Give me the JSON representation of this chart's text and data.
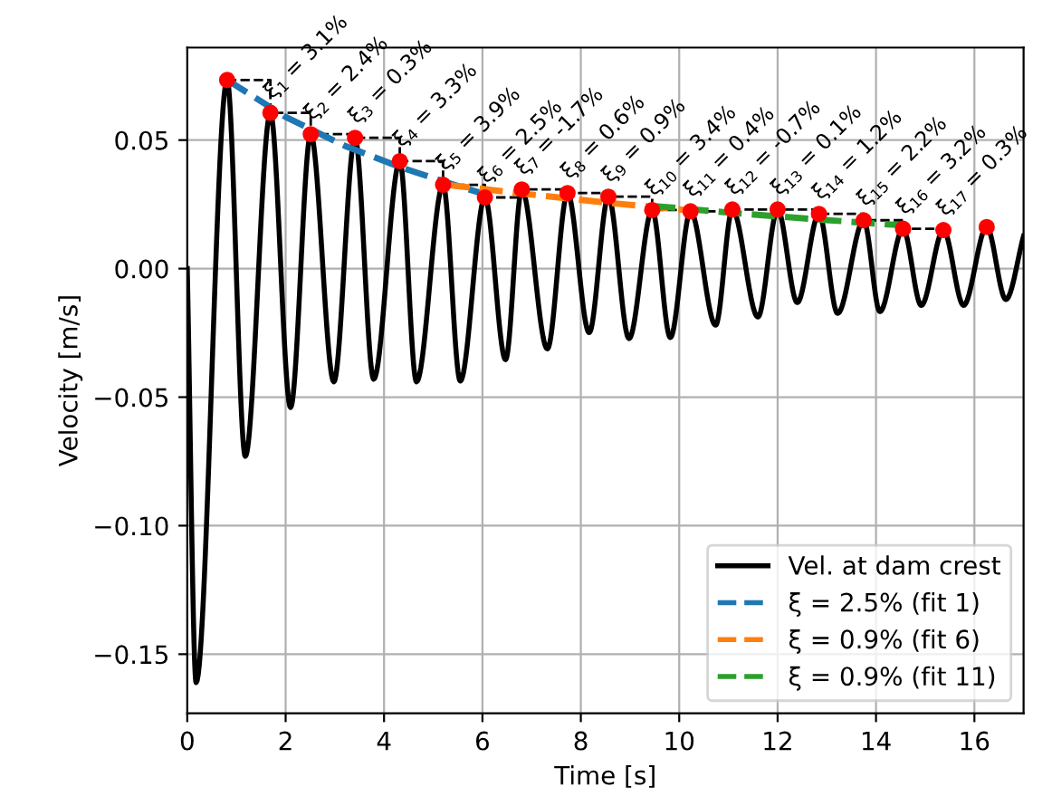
{
  "chart_data": {
    "type": "line",
    "xlabel": "Time [s]",
    "ylabel": "Velocity [m/s]",
    "xlim": [
      0,
      17
    ],
    "ylim": [
      -0.173,
      0.086
    ],
    "xticks": [
      0,
      2,
      4,
      6,
      8,
      10,
      12,
      14,
      16
    ],
    "yticks": [
      {
        "value": -0.15,
        "label": "−0.15"
      },
      {
        "value": -0.1,
        "label": "−0.10"
      },
      {
        "value": -0.05,
        "label": "−0.05"
      },
      {
        "value": 0,
        "label": "0.00"
      },
      {
        "value": 0.05,
        "label": "0.05"
      }
    ],
    "grid": true,
    "legend": "bottom right",
    "series": [
      {
        "name": "Vel. at dam crest",
        "color": "#000000",
        "line_style": "solid",
        "marker": "none",
        "x": [
          0,
          0.18,
          0.81,
          1.18,
          1.69,
          2.1,
          2.51,
          2.98,
          3.41,
          3.79,
          4.32,
          4.66,
          5.2,
          5.55,
          6.05,
          6.47,
          6.8,
          7.32,
          7.73,
          8.17,
          8.56,
          8.98,
          9.45,
          9.82,
          10.23,
          10.74,
          11.08,
          11.6,
          12.0,
          12.4,
          12.84,
          13.22,
          13.75,
          14.08,
          14.55,
          14.92,
          15.37,
          15.78,
          16.25,
          16.64,
          17.0
        ],
        "values": [
          0,
          -0.161,
          0.0734,
          -0.073,
          0.0606,
          -0.054,
          0.0523,
          -0.044,
          0.0509,
          -0.043,
          0.0418,
          -0.044,
          0.0326,
          -0.0437,
          0.0277,
          -0.0354,
          0.0308,
          -0.0312,
          0.0294,
          -0.0249,
          0.028,
          -0.0272,
          0.0228,
          -0.0268,
          0.0223,
          -0.022,
          0.023,
          -0.0188,
          0.023,
          -0.0132,
          0.0213,
          -0.0174,
          0.0188,
          -0.0167,
          0.0155,
          -0.0143,
          0.015,
          -0.0143,
          0.0162,
          -0.012,
          0.0127
        ]
      },
      {
        "type": "step",
        "color": "#000000",
        "line_style": "dashed",
        "marker": "none",
        "x": [
          0.81,
          1.69,
          2.51,
          3.41,
          4.32,
          5.2,
          6.05,
          6.8,
          7.73,
          8.56,
          9.45,
          10.23,
          11.08,
          12.0,
          12.84,
          13.75,
          14.55,
          15.37
        ],
        "values": [
          0.0734,
          0.0606,
          0.0523,
          0.0509,
          0.0418,
          0.0326,
          0.0277,
          0.0308,
          0.0294,
          0.028,
          0.0228,
          0.0223,
          0.023,
          0.023,
          0.0213,
          0.0188,
          0.0155,
          0.015
        ]
      },
      {
        "name": "ξ = 2.5% (fit 1)",
        "type": "line",
        "color": "#1f77b4",
        "line_style": "dashed",
        "marker": "none",
        "x": [
          0.81,
          2.0,
          3.2,
          4.4,
          5.6,
          6.05
        ],
        "values": [
          0.0734,
          0.059,
          0.0478,
          0.039,
          0.0315,
          0.029
        ]
      },
      {
        "name": "ξ = 0.9% (fit 6)",
        "type": "line",
        "color": "#ff7f0e",
        "line_style": "dashed",
        "marker": "none",
        "x": [
          5.27,
          7.0,
          8.6,
          10.3
        ],
        "values": [
          0.0326,
          0.0288,
          0.0255,
          0.0225
        ]
      },
      {
        "name": "ξ = 0.9% (fit 11)",
        "type": "line",
        "color": "#2ca02c",
        "line_style": "dashed",
        "marker": "none",
        "x": [
          9.45,
          11.2,
          12.9,
          14.5
        ],
        "values": [
          0.0244,
          0.0215,
          0.019,
          0.0169
        ]
      },
      {
        "type": "scatter",
        "color": "#ff0000",
        "marker": "circle",
        "x": [
          0.81,
          1.69,
          2.51,
          3.41,
          4.32,
          5.2,
          6.05,
          6.8,
          7.73,
          8.56,
          9.45,
          10.23,
          11.08,
          12.0,
          12.84,
          13.75,
          14.55,
          15.37,
          16.25
        ],
        "values": [
          0.0734,
          0.0606,
          0.0523,
          0.0509,
          0.0418,
          0.0326,
          0.0277,
          0.0308,
          0.0294,
          0.028,
          0.0228,
          0.0223,
          0.023,
          0.023,
          0.0213,
          0.0188,
          0.0155,
          0.015,
          0.0162
        ]
      }
    ],
    "annotations": [
      {
        "text": "ξ$_{1}$ = 3.1%",
        "x": 1.69,
        "y": 0.0606
      },
      {
        "text": "ξ$_{2}$ = 2.4%",
        "x": 2.51,
        "y": 0.0523
      },
      {
        "text": "ξ$_{3}$ = 0.3%",
        "x": 3.41,
        "y": 0.0509
      },
      {
        "text": "ξ$_{4}$ = 3.3%",
        "x": 4.32,
        "y": 0.0418
      },
      {
        "text": "ξ$_{5}$ = 3.9%",
        "x": 5.2,
        "y": 0.0326
      },
      {
        "text": "ξ$_{6}$ = 2.5%",
        "x": 6.05,
        "y": 0.0277
      },
      {
        "text": "ξ$_{7}$ = -1.7%",
        "x": 6.8,
        "y": 0.0308
      },
      {
        "text": "ξ$_{8}$ = 0.6%",
        "x": 7.73,
        "y": 0.0294
      },
      {
        "text": "ξ$_{9}$ = 0.9%",
        "x": 8.56,
        "y": 0.028
      },
      {
        "text": "ξ$_{10}$ = 3.4%",
        "x": 9.45,
        "y": 0.0228
      },
      {
        "text": "ξ$_{11}$ = 0.4%",
        "x": 10.23,
        "y": 0.0223
      },
      {
        "text": "ξ$_{12}$ = -0.7%",
        "x": 11.08,
        "y": 0.023
      },
      {
        "text": "ξ$_{13}$ = 0.1%",
        "x": 12.0,
        "y": 0.023
      },
      {
        "text": "ξ$_{14}$ = 1.2%",
        "x": 12.84,
        "y": 0.0213
      },
      {
        "text": "ξ$_{15}$ = 2.2%",
        "x": 13.75,
        "y": 0.0188
      },
      {
        "text": "ξ$_{16}$ = 3.2%",
        "x": 14.55,
        "y": 0.0155
      },
      {
        "text": "ξ$_{17}$ = 0.3%",
        "x": 15.37,
        "y": 0.015
      }
    ]
  }
}
